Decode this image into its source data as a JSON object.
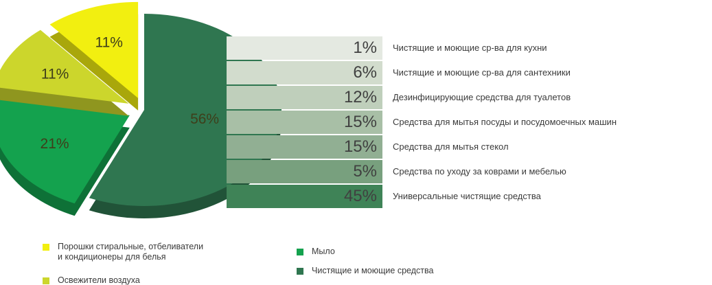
{
  "chart_data": [
    {
      "type": "pie",
      "categories": [
        "Порошки стиральные, отбеливатели и кондиционеры для белья",
        "Освежители воздуха",
        "Мыло",
        "Чистящие и моющие средства"
      ],
      "values": [
        11,
        11,
        21,
        56
      ],
      "value_labels": [
        "11%",
        "11%",
        "21%",
        "56%"
      ],
      "colors": [
        "#f2ef10",
        "#ccd62c",
        "#14a24e",
        "#2f7650"
      ]
    },
    {
      "type": "bar",
      "parent_category": "Чистящие и моющие средства",
      "categories": [
        "Чистящие и моющие ср-ва для кухни",
        "Чистящие и моющие ср-ва для сантехники",
        "Дезинфицирующие средства для туалетов",
        "Средства для мытья посуды и посудомоечных машин",
        "Средства для мытья стекол",
        "Средства по уходу за коврами и мебелью",
        "Универсальные чистящие средства"
      ],
      "values": [
        1,
        6,
        12,
        15,
        15,
        5,
        45
      ],
      "value_labels": [
        "1%",
        "6%",
        "12%",
        "15%",
        "15%",
        "5%",
        "45%"
      ],
      "colors": [
        "#e4e9e1",
        "#d2dccd",
        "#bfcfbb",
        "#a8bfa6",
        "#91af93",
        "#78a07e",
        "#3f8357"
      ]
    }
  ],
  "legend": {
    "items": [
      {
        "text": "Порошки стиральные, отбеливатели\nи кондиционеры для белья",
        "color": "#f2ef10"
      },
      {
        "text": "Освежители воздуха",
        "color": "#ccd62c"
      },
      {
        "text": "Мыло",
        "color": "#14a24e"
      },
      {
        "text": "Чистящие и моющие средства",
        "color": "#2f7650"
      }
    ]
  }
}
